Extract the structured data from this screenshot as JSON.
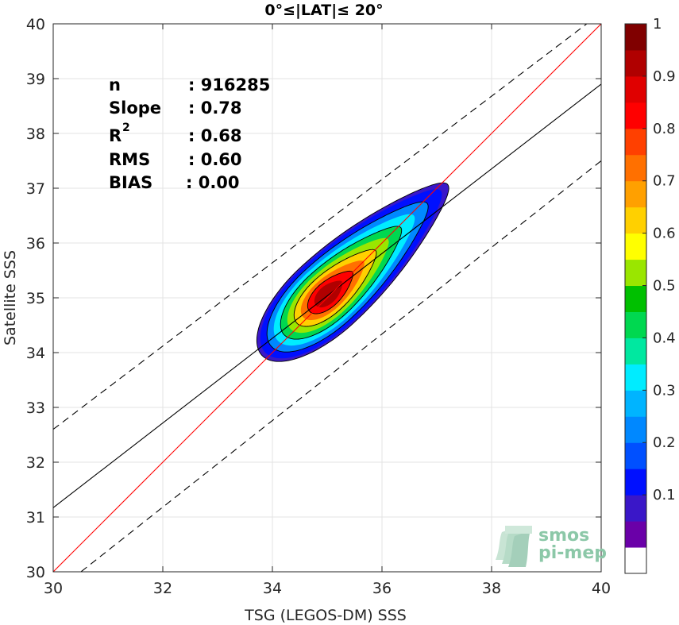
{
  "chart_data": {
    "type": "contour",
    "title": "0°≤|LAT|≤ 20°",
    "xlabel": "TSG (LEGOS-DM) SSS",
    "ylabel": "Satellite SSS",
    "xlim": [
      30,
      40
    ],
    "ylim": [
      30,
      40
    ],
    "xticks": [
      "30",
      "32",
      "34",
      "36",
      "38",
      "40"
    ],
    "yticks": [
      "30",
      "31",
      "32",
      "33",
      "34",
      "35",
      "36",
      "37",
      "38",
      "39",
      "40"
    ],
    "grid": true,
    "stats": [
      {
        "label": "n",
        "value": ": 916285"
      },
      {
        "label": "Slope",
        "value": ": 0.78"
      },
      {
        "label": "R",
        "sup": "2",
        "value": ": 0.68"
      },
      {
        "label": "RMS",
        "value": ": 0.60"
      },
      {
        "label": "BIAS",
        "value": ": 0.00"
      }
    ],
    "lines": {
      "identity": {
        "x": [
          30,
          40
        ],
        "y": [
          30,
          40
        ],
        "color": "#ff0000"
      },
      "regression": {
        "x": [
          30,
          40
        ],
        "y": [
          31.17,
          38.9
        ],
        "color": "#000000"
      },
      "upper_bound": {
        "x": [
          30,
          40
        ],
        "y": [
          32.6,
          40.2
        ],
        "color": "#000000",
        "style": "dashed"
      },
      "lower_bound": {
        "x": [
          30,
          40
        ],
        "y": [
          29.6,
          37.5
        ],
        "color": "#000000",
        "style": "dashed"
      }
    },
    "density": {
      "ridge": [
        {
          "x": 33.9,
          "y": 34.15
        },
        {
          "x": 34.5,
          "y": 34.6
        },
        {
          "x": 35.0,
          "y": 35.05
        },
        {
          "x": 35.5,
          "y": 35.55
        },
        {
          "x": 36.0,
          "y": 35.95
        },
        {
          "x": 36.55,
          "y": 36.55
        },
        {
          "x": 37.0,
          "y": 37.0
        }
      ],
      "peak": {
        "x": 35.0,
        "y": 35.05
      },
      "levels": [
        0.05,
        0.1,
        0.2,
        0.3,
        0.4,
        0.5,
        0.6,
        0.7,
        0.8,
        0.9
      ]
    },
    "colorbar": {
      "ticks": [
        "0.1",
        "0.2",
        "0.3",
        "0.4",
        "0.5",
        "0.6",
        "0.7",
        "0.8",
        "0.9",
        "1"
      ],
      "tick_values": [
        0.1,
        0.2,
        0.3,
        0.4,
        0.5,
        0.6,
        0.7,
        0.8,
        0.9,
        1.0
      ],
      "colors": [
        "#ffffff",
        "#6a00a8",
        "#3a17c8",
        "#0010ff",
        "#0050ff",
        "#0088ff",
        "#00b4ff",
        "#00ecff",
        "#00e8a0",
        "#00d850",
        "#00c000",
        "#9ae600",
        "#ffff00",
        "#ffd000",
        "#ffa000",
        "#ff7000",
        "#ff4000",
        "#ff0000",
        "#e00000",
        "#b00000",
        "#800000"
      ]
    }
  },
  "logo": {
    "line1": "smos",
    "line2": "pi-mep"
  }
}
